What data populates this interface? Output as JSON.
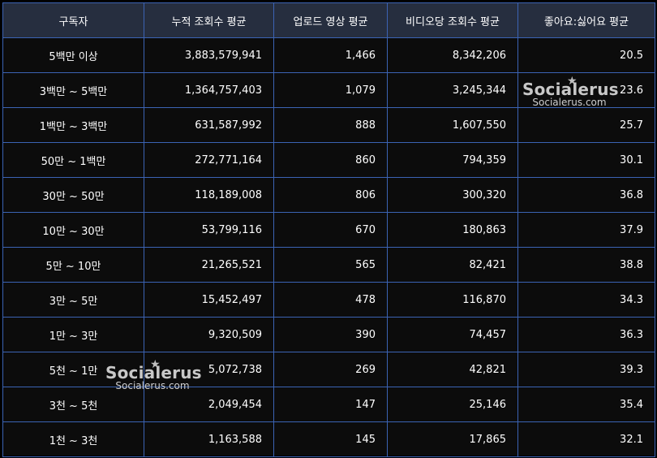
{
  "chart_data": {
    "type": "table",
    "columns": [
      "구독자",
      "누적 조회수 평균",
      "업로드 영상 평균",
      "비디오당 조회수 평균",
      "좋아요:싫어요 평균"
    ],
    "rows": [
      [
        "5백만 이상",
        "3,883,579,941",
        "1,466",
        "8,342,206",
        "20.5"
      ],
      [
        "3백만 ~ 5백만",
        "1,364,757,403",
        "1,079",
        "3,245,344",
        "23.6"
      ],
      [
        "1백만 ~ 3백만",
        "631,587,992",
        "888",
        "1,607,550",
        "25.7"
      ],
      [
        "50만 ~ 1백만",
        "272,771,164",
        "860",
        "794,359",
        "30.1"
      ],
      [
        "30만 ~ 50만",
        "118,189,008",
        "806",
        "300,320",
        "36.8"
      ],
      [
        "10만 ~ 30만",
        "53,799,116",
        "670",
        "180,863",
        "37.9"
      ],
      [
        "5만 ~ 10만",
        "21,265,521",
        "565",
        "82,421",
        "38.8"
      ],
      [
        "3만 ~ 5만",
        "15,452,497",
        "478",
        "116,870",
        "34.3"
      ],
      [
        "1만 ~ 3만",
        "9,320,509",
        "390",
        "74,457",
        "36.3"
      ],
      [
        "5천 ~ 1만",
        "5,072,738",
        "269",
        "42,821",
        "39.3"
      ],
      [
        "3천 ~ 5천",
        "2,049,454",
        "147",
        "25,146",
        "35.4"
      ],
      [
        "1천 ~ 3천",
        "1,163,588",
        "145",
        "17,865",
        "32.1"
      ]
    ]
  },
  "watermark": {
    "brand": "Socialerus",
    "site": "Socialerus.com",
    "icon": "star-icon"
  },
  "colors": {
    "background": "#0c0c0c",
    "header": "#262e3f",
    "border": "#3b63b4",
    "text": "#ffffff"
  }
}
